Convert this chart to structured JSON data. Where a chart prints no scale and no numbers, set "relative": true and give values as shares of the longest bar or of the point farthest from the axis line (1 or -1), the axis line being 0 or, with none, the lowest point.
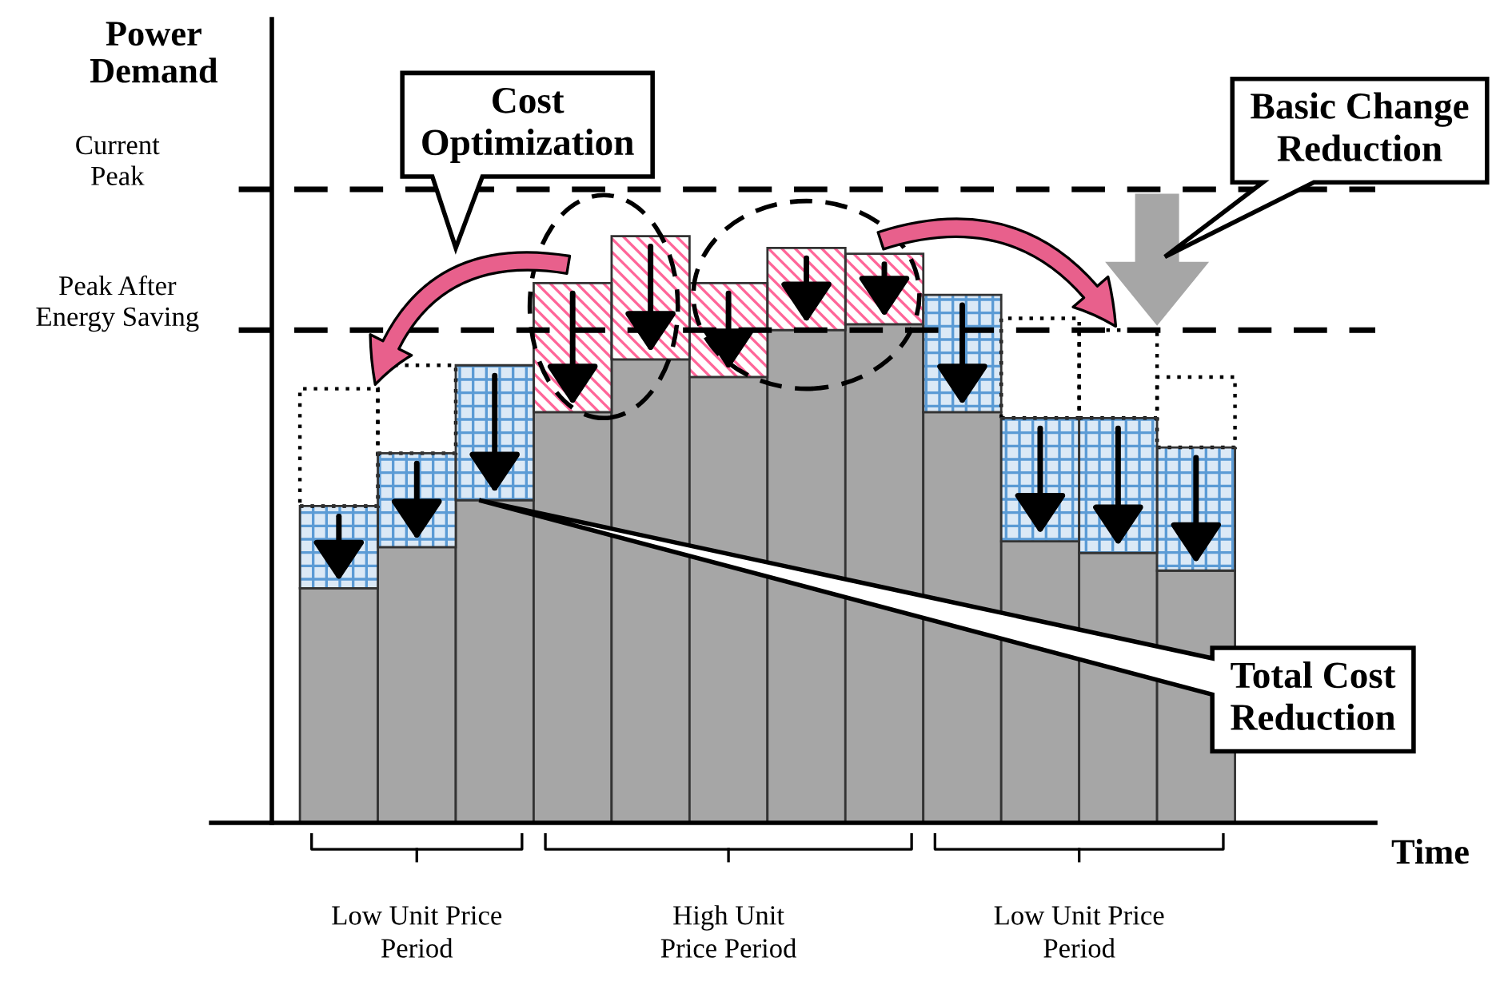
{
  "chart_data": {
    "type": "bar",
    "stacked": true,
    "relative": true,
    "legend": false,
    "ylabel": "Power Demand",
    "xlabel": "Time",
    "categories": [
      null,
      null,
      null,
      null,
      null,
      null,
      null,
      null,
      null,
      null,
      null,
      null
    ],
    "series": [
      {
        "color": "#a6a6a6",
        "values": [
          0.4,
          0.47,
          0.55,
          0.7,
          0.79,
          0.76,
          0.84,
          0.85,
          0.7,
          0.48,
          0.46,
          0.43
        ]
      },
      {
        "colors": [
          "#5b9bd5",
          "#5b9bd5",
          "#5b9bd5",
          "#ff6699",
          "#ff6699",
          "#ff6699",
          "#ff6699",
          "#ff6699",
          "#5b9bd5",
          "#5b9bd5",
          "#5b9bd5",
          "#5b9bd5"
        ],
        "values": [
          0.14,
          0.16,
          0.23,
          0.22,
          0.21,
          0.16,
          0.14,
          0.12,
          0.2,
          0.21,
          0.23,
          0.21
        ]
      },
      {
        "color": "#000000",
        "line_style": "dotted",
        "values": [
          0.2,
          0.15,
          null,
          null,
          null,
          null,
          null,
          null,
          null,
          0.17,
          0.15,
          0.12
        ]
      }
    ],
    "ref_lines": [
      {
        "axis": "y",
        "value": 1.08,
        "label": "Current Peak",
        "color": "#000000",
        "line_style": "dashed"
      },
      {
        "axis": "y",
        "value": 0.84,
        "label": "Peak After Energy Saving",
        "color": "#000000",
        "line_style": "dashed"
      }
    ],
    "annotations": [
      "Cost Optimization",
      "Basic Change Reduction",
      "Total Cost Reduction",
      "Low Unit Price Period",
      "High Unit Price Period",
      "Low Unit Price Period"
    ]
  }
}
